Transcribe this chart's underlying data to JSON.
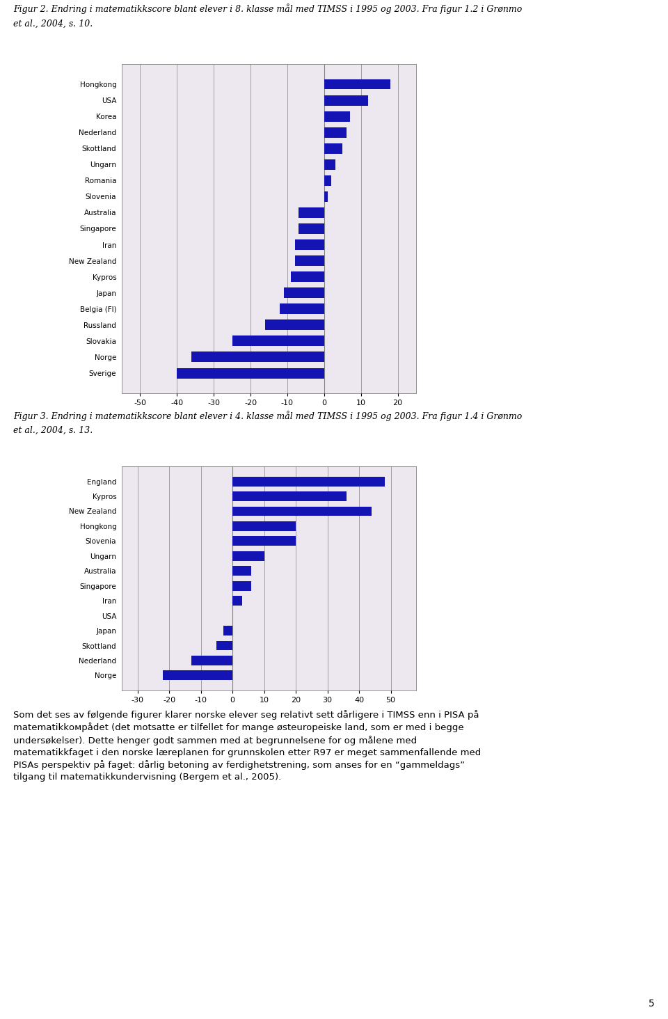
{
  "fig2_caption_line1": "Figur 2. Endring i matematikkscore blant elever i 8. klasse mål med TIMSS i 1995 og 2003. Fra figur 1.2 i Grønmo",
  "fig2_caption_line2": "et al., 2004, s. 10.",
  "fig3_caption_line1": "Figur 3. Endring i matematikkscore blant elever i 4. klasse mål med TIMSS i 1995 og 2003. Fra figur 1.4 i Grønmo",
  "fig3_caption_line2": "et al., 2004, s. 13.",
  "fig2_countries": [
    "Hongkong",
    "USA",
    "Korea",
    "Nederland",
    "Skottland",
    "Ungarn",
    "Romania",
    "Slovenia",
    "Australia",
    "Singapore",
    "Iran",
    "New Zealand",
    "Kypros",
    "Japan",
    "Belgia (Fl)",
    "Russland",
    "Slovakia",
    "Norge",
    "Sverige"
  ],
  "fig2_values": [
    18,
    12,
    7,
    6,
    5,
    3,
    2,
    1,
    -7,
    -7,
    -8,
    -8,
    -9,
    -11,
    -12,
    -16,
    -25,
    -36,
    -40
  ],
  "fig3_countries": [
    "England",
    "Kypros",
    "New Zealand",
    "Hongkong",
    "Slovenia",
    "Ungarn",
    "Australia",
    "Singapore",
    "Iran",
    "USA",
    "Japan",
    "Skottland",
    "Nederland",
    "Norge"
  ],
  "fig3_values": [
    48,
    36,
    44,
    20,
    20,
    10,
    6,
    6,
    3,
    0,
    -3,
    -5,
    -13,
    -22
  ],
  "bar_color": "#1414B4",
  "chart_bg": "#EDE8F0",
  "fig2_xlim": [
    -55,
    25
  ],
  "fig2_xticks": [
    -50,
    -40,
    -30,
    -20,
    -10,
    0,
    10,
    20
  ],
  "fig3_xlim": [
    -35,
    58
  ],
  "fig3_xticks": [
    -30,
    -20,
    -10,
    0,
    10,
    20,
    30,
    40,
    50
  ],
  "body_text_parts": [
    {
      "text": "Som det ses av følgende figurer klarer norske elever seg relativt sett dårligere i TIMSS enn i PISA på",
      "italic": false,
      "bold": false
    },
    {
      "text": "matematikkомрådet (det motsatte er tilfellet for mange østeuropeiske land, som er med i begge",
      "italic": false,
      "bold": false
    },
    {
      "text": "undersøkelser). Dette henger godt sammen med at begrunnelsene for og målene med",
      "italic": false,
      "bold": false
    },
    {
      "text": "matematikkfaget i den norske læreplanen for grunnskolen etter R97 er meget sammenfallende med",
      "italic": false,
      "bold": false
    },
    {
      "text": "PISAs perspektiv på faget: dårlig betoning av ferdighetstrening, som anses for en “gammeldags”",
      "italic": false,
      "bold": false
    },
    {
      "text": "tilgang til matematikkundervisning (Bergem ",
      "italic": false,
      "bold": false
    }
  ],
  "body_text": "Som det ses av følgende figurer klarer norske elever seg relativt sett dårligere i TIMSS enn i PISA på\nmatematikkомрådet (det motsatte er tilfellet for mange østeuropeiske land, som er med i begge\nundersøkelser). Dette henger godt sammen med at begrunnelsene for og målene med\nmatematikkfaget i den norske læreplanen for grunnskolen etter R97 er meget sammenfallende med\nPISAs perspektiv på faget: dårlig betoning av ferdighetstrening, som anses for en “gammeldags”\ntilgang til matematikkundervisning (Bergem et al., 2005).",
  "page_number": "5"
}
